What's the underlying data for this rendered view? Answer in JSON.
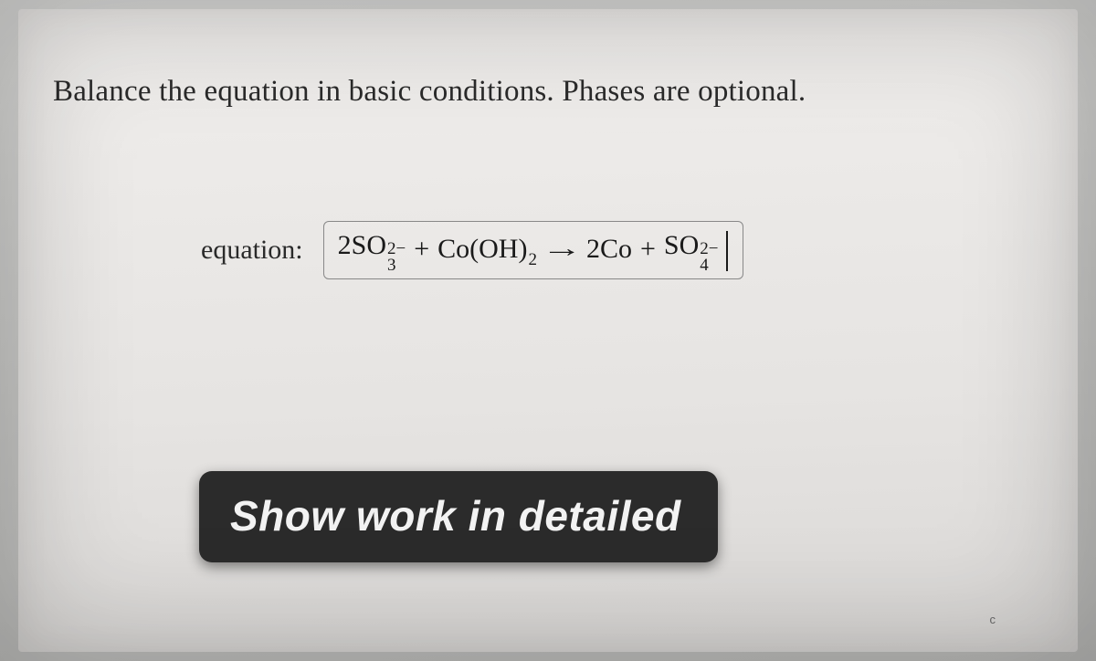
{
  "instruction": "Balance the equation in basic conditions. Phases are optional.",
  "equation_label": "equation:",
  "equation": {
    "lhs_coef1": "2",
    "species1_base": "SO",
    "species1_sub": "3",
    "species1_sup": "2−",
    "plus": "+",
    "species2_base": "Co(OH)",
    "species2_sub": "2",
    "arrow": "→",
    "rhs_coef1": "2",
    "species3_base": "Co",
    "species4_base": "SO",
    "species4_sub": "4",
    "species4_sup": "2−"
  },
  "show_work": "Show work in detailed",
  "corner": "c"
}
